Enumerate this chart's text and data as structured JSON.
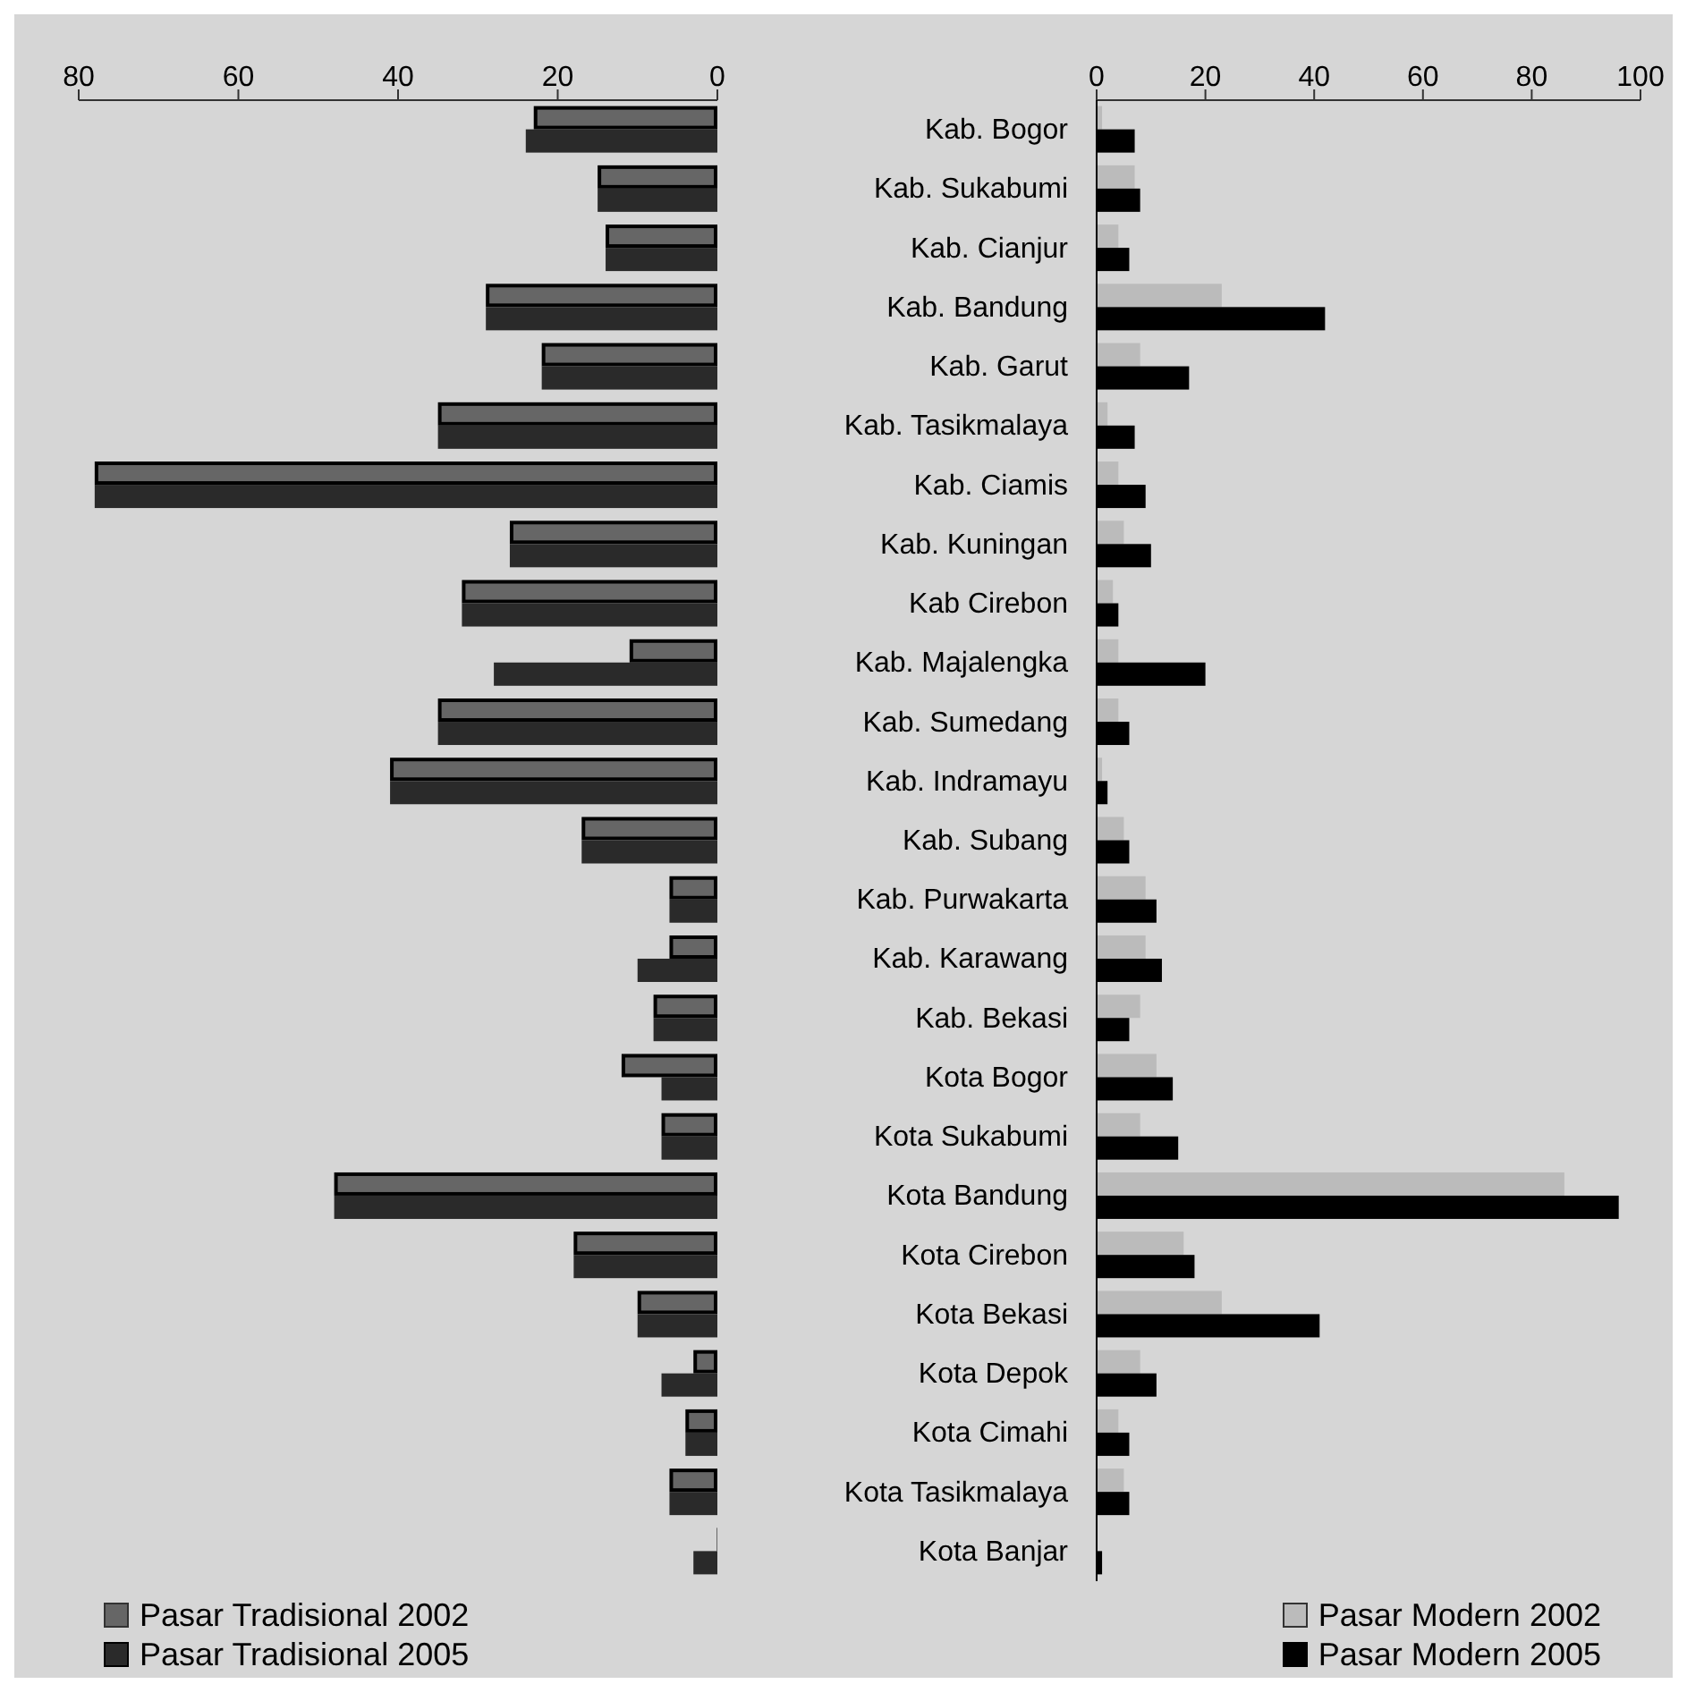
{
  "chart_data": [
    {
      "type": "bar",
      "orientation": "horizontal",
      "categories": [
        "Kab. Bogor",
        "Kab. Sukabumi",
        "Kab. Cianjur",
        "Kab. Bandung",
        "Kab. Garut",
        "Kab. Tasikmalaya",
        "Kab. Ciamis",
        "Kab. Kuningan",
        "Kab Cirebon",
        "Kab. Majalengka",
        "Kab. Sumedang",
        "Kab. Indramayu",
        "Kab. Subang",
        "Kab. Purwakarta",
        "Kab. Karawang",
        "Kab. Bekasi",
        "Kota Bogor",
        "Kota Sukabumi",
        "Kota Bandung",
        "Kota Cirebon",
        "Kota Bekasi",
        "Kota Depok",
        "Kota Cimahi",
        "Kota Tasikmalaya",
        "Kota Banjar"
      ],
      "xlim": [
        80,
        0
      ],
      "xticks": [
        80,
        60,
        40,
        20,
        0
      ],
      "grid": false,
      "legend": "bottom left",
      "series": [
        {
          "name": "Pasar Tradisional 2002",
          "color": "#666666",
          "values": [
            23,
            15,
            14,
            29,
            22,
            35,
            78,
            26,
            32,
            11,
            35,
            41,
            17,
            6,
            6,
            8,
            12,
            7,
            48,
            18,
            10,
            3,
            4,
            6,
            0
          ]
        },
        {
          "name": "Pasar Tradisional 2005",
          "color": "#2a2a2a",
          "values": [
            24,
            15,
            14,
            29,
            22,
            35,
            78,
            26,
            32,
            28,
            35,
            41,
            17,
            6,
            10,
            8,
            7,
            7,
            48,
            18,
            10,
            7,
            4,
            6,
            3
          ]
        }
      ]
    },
    {
      "type": "bar",
      "orientation": "horizontal",
      "categories": [
        null,
        null,
        null,
        null,
        null,
        null,
        null,
        null,
        null,
        null,
        null,
        null,
        null,
        null,
        null,
        null,
        null,
        null,
        null,
        null,
        null,
        null,
        null,
        null,
        null
      ],
      "tick_labels": "x",
      "xlim": [
        0,
        100
      ],
      "xticks": [
        0,
        20,
        40,
        60,
        80,
        100
      ],
      "grid": false,
      "legend": "bottom right",
      "series": [
        {
          "name": "Pasar Modern 2002",
          "color": "#bbbbbb",
          "values": [
            1,
            7,
            4,
            23,
            8,
            2,
            4,
            5,
            3,
            4,
            4,
            1,
            5,
            9,
            9,
            8,
            11,
            8,
            86,
            16,
            23,
            8,
            4,
            5,
            0
          ]
        },
        {
          "name": "Pasar Modern 2005",
          "color": "#000000",
          "values": [
            7,
            8,
            6,
            42,
            17,
            7,
            9,
            10,
            4,
            20,
            6,
            2,
            6,
            11,
            12,
            6,
            14,
            15,
            96,
            18,
            41,
            11,
            6,
            6,
            1
          ]
        }
      ]
    }
  ]
}
